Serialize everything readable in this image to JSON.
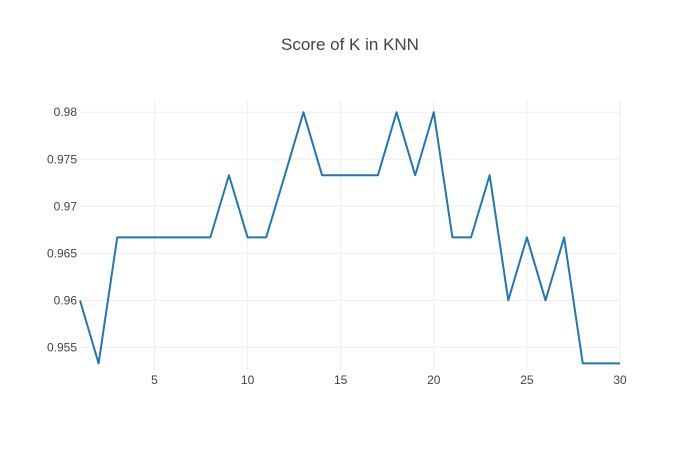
{
  "colors": {
    "background": "#ffffff",
    "line": "#1f77b4",
    "grid": "#eeeeee",
    "text": "#444444"
  },
  "chart_data": {
    "type": "line",
    "title": "Score of K in KNN",
    "xlabel": "",
    "ylabel": "",
    "grid": true,
    "xlim": [
      1,
      30
    ],
    "ylim": [
      0.9526,
      0.9813
    ],
    "x_ticks": [
      5,
      10,
      15,
      20,
      25,
      30
    ],
    "x_tick_labels": [
      "5",
      "10",
      "15",
      "20",
      "25",
      "30"
    ],
    "y_ticks": [
      0.955,
      0.96,
      0.965,
      0.97,
      0.975,
      0.98
    ],
    "y_tick_labels": [
      "0.955",
      "0.96",
      "0.965",
      "0.97",
      "0.975",
      "0.98"
    ],
    "series": [
      {
        "x": [
          1,
          2,
          3,
          4,
          5,
          6,
          7,
          8,
          9,
          10,
          11,
          12,
          13,
          14,
          15,
          16,
          17,
          18,
          19,
          20,
          21,
          22,
          23,
          24,
          25,
          26,
          27,
          28,
          29,
          30
        ],
        "values": [
          0.96,
          0.9533,
          0.9667,
          0.9667,
          0.9667,
          0.9667,
          0.9667,
          0.9667,
          0.9733,
          0.9667,
          0.9667,
          0.9733,
          0.98,
          0.9733,
          0.9733,
          0.9733,
          0.9733,
          0.98,
          0.9733,
          0.98,
          0.9667,
          0.9667,
          0.9733,
          0.96,
          0.9667,
          0.96,
          0.9667,
          0.9533,
          0.9533,
          0.9533
        ]
      }
    ]
  }
}
